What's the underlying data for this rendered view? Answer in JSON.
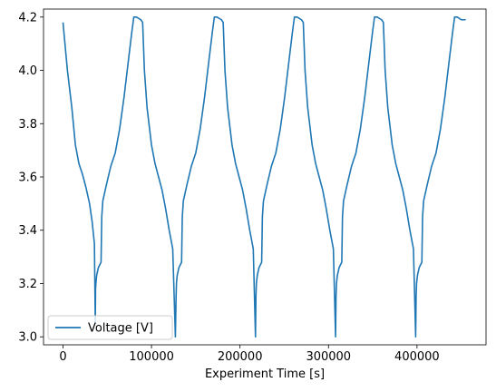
{
  "chart_data": {
    "type": "line",
    "title": "",
    "xlabel": "Experiment Time [s]",
    "ylabel": "",
    "xlim": [
      -22000,
      478000
    ],
    "ylim": [
      2.97,
      4.23
    ],
    "xticks": [
      0,
      100000,
      200000,
      300000,
      400000
    ],
    "xtick_labels": [
      "0",
      "100000",
      "200000",
      "300000",
      "400000"
    ],
    "yticks": [
      3.0,
      3.2,
      3.4,
      3.6,
      3.8,
      4.0,
      4.2
    ],
    "ytick_labels": [
      "3.0",
      "3.2",
      "3.4",
      "3.6",
      "3.8",
      "4.0",
      "4.2"
    ],
    "grid": false,
    "legend_position": "lower-left",
    "series": [
      {
        "name": "Voltage [V]",
        "color": "#1f77b4",
        "x": [
          0,
          5000,
          10000,
          14000,
          18000,
          22000,
          26000,
          30000,
          33000,
          35500,
          36500,
          36800,
          37200,
          38000,
          40000,
          43000,
          43800,
          45000,
          49000,
          54000,
          59000,
          64000,
          69000,
          74000,
          78000,
          80000,
          83000,
          88000,
          90000,
          92000,
          95000,
          100000,
          104000,
          108000,
          112000,
          116000,
          120000,
          124000,
          127000,
          127800,
          128200,
          129000,
          131000,
          134000,
          134800,
          136000,
          140000,
          145000,
          150000,
          155000,
          160000,
          165000,
          169000,
          171000,
          174000,
          179000,
          181000,
          183000,
          186000,
          191000,
          195000,
          199000,
          203000,
          207000,
          211000,
          215000,
          217500,
          218000,
          218500,
          219500,
          221500,
          224500,
          225300,
          226500,
          230500,
          235500,
          240500,
          245500,
          250500,
          255500,
          259500,
          261500,
          264500,
          269500,
          271500,
          273500,
          276500,
          281500,
          285500,
          289500,
          293500,
          297500,
          301500,
          305500,
          308000,
          308500,
          309000,
          310000,
          312000,
          315000,
          315800,
          317000,
          321000,
          326000,
          331000,
          336000,
          341000,
          346000,
          350000,
          352000,
          355000,
          360000,
          362000,
          364000,
          367000,
          372000,
          376000,
          380000,
          384000,
          388000,
          392000,
          396000,
          398500,
          399000,
          399500,
          400500,
          402500,
          405500,
          406300,
          407500,
          411500,
          416500,
          421500,
          426500,
          431500,
          436500,
          440500,
          442500,
          445500,
          450000,
          455000
        ],
        "values": [
          4.18,
          4.0,
          3.86,
          3.72,
          3.65,
          3.61,
          3.56,
          3.5,
          3.43,
          3.35,
          3.05,
          3.18,
          3.2,
          3.23,
          3.26,
          3.28,
          3.45,
          3.51,
          3.57,
          3.64,
          3.69,
          3.78,
          3.9,
          4.04,
          4.15,
          4.2,
          4.2,
          4.19,
          4.18,
          4.0,
          3.86,
          3.72,
          3.65,
          3.6,
          3.55,
          3.48,
          3.4,
          3.33,
          3.0,
          3.15,
          3.2,
          3.23,
          3.26,
          3.28,
          3.45,
          3.51,
          3.57,
          3.64,
          3.69,
          3.78,
          3.9,
          4.04,
          4.15,
          4.2,
          4.2,
          4.19,
          4.18,
          4.0,
          3.86,
          3.72,
          3.65,
          3.6,
          3.55,
          3.48,
          3.4,
          3.33,
          3.0,
          3.15,
          3.2,
          3.23,
          3.26,
          3.28,
          3.45,
          3.51,
          3.57,
          3.64,
          3.69,
          3.78,
          3.9,
          4.04,
          4.15,
          4.2,
          4.2,
          4.19,
          4.18,
          4.0,
          3.86,
          3.72,
          3.65,
          3.6,
          3.55,
          3.48,
          3.4,
          3.33,
          3.0,
          3.15,
          3.2,
          3.23,
          3.26,
          3.28,
          3.45,
          3.51,
          3.57,
          3.64,
          3.69,
          3.78,
          3.9,
          4.04,
          4.15,
          4.2,
          4.2,
          4.19,
          4.18,
          4.0,
          3.86,
          3.72,
          3.65,
          3.6,
          3.55,
          3.48,
          3.4,
          3.33,
          3.0,
          3.15,
          3.2,
          3.23,
          3.26,
          3.28,
          3.45,
          3.51,
          3.57,
          3.64,
          3.69,
          3.78,
          3.9,
          4.04,
          4.15,
          4.2,
          4.2,
          4.19,
          4.19
        ]
      }
    ]
  }
}
